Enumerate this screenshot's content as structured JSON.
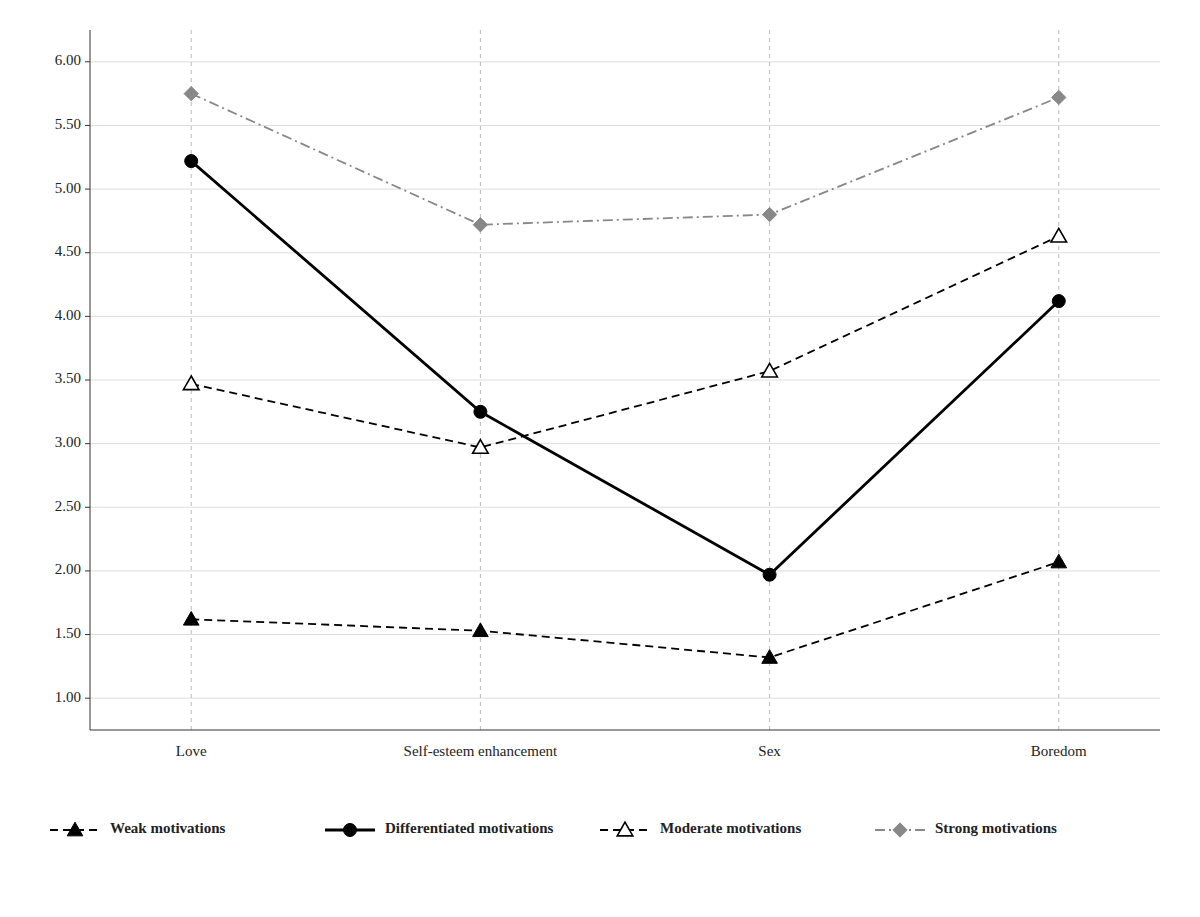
{
  "chart_data": {
    "type": "line",
    "categories": [
      "Love",
      "Self-esteem enhancement",
      "Sex",
      "Boredom"
    ],
    "series": [
      {
        "name": "Weak motivations",
        "color": "#000000",
        "marker": "triangle",
        "line_style": "dashed",
        "values": [
          1.62,
          1.53,
          1.32,
          2.07
        ]
      },
      {
        "name": "Differentiated motivations",
        "color": "#000000",
        "marker": "circle",
        "line_style": "solid",
        "values": [
          5.22,
          3.25,
          1.97,
          4.12
        ]
      },
      {
        "name": "Moderate motivations",
        "color": "#000000",
        "marker": "triangle-open",
        "line_style": "dashed",
        "values": [
          3.47,
          2.97,
          3.57,
          4.63
        ]
      },
      {
        "name": "Strong motivations",
        "color": "#888888",
        "marker": "diamond",
        "line_style": "dashdot",
        "values": [
          5.75,
          4.72,
          4.8,
          5.72
        ]
      }
    ],
    "ylim": [
      0.75,
      6.25
    ],
    "yticks": [
      {
        "value": 1.0,
        "label": "1.00"
      },
      {
        "value": 1.5,
        "label": "1.50"
      },
      {
        "value": 2.0,
        "label": "2.00"
      },
      {
        "value": 2.5,
        "label": "2.50"
      },
      {
        "value": 3.0,
        "label": "3.00"
      },
      {
        "value": 3.5,
        "label": "3.50"
      },
      {
        "value": 4.0,
        "label": "4.00"
      },
      {
        "value": 4.5,
        "label": "4.50"
      },
      {
        "value": 5.0,
        "label": "5.00"
      },
      {
        "value": 5.5,
        "label": "5.50"
      },
      {
        "value": 6.0,
        "label": "6.00"
      }
    ],
    "grid": true,
    "legend": "bottom"
  }
}
